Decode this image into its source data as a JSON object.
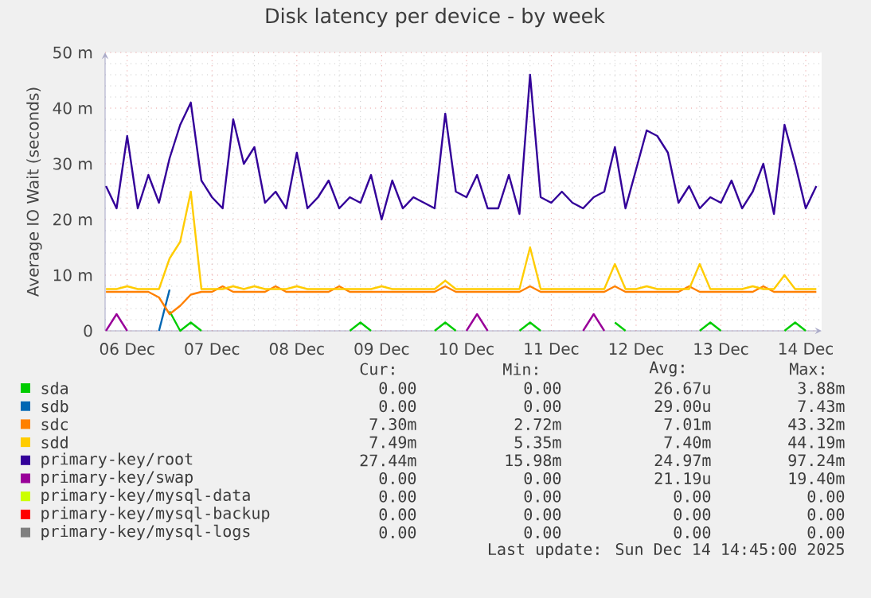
{
  "chart_data": {
    "type": "line",
    "title": "Disk latency per device - by week",
    "ylabel": "Average IO Wait (seconds)",
    "x": [
      "2025-12-05T18:00",
      "2025-12-05T21:00",
      "2025-12-06T00:00",
      "2025-12-06T03:00",
      "2025-12-06T06:00",
      "2025-12-06T09:00",
      "2025-12-06T12:00",
      "2025-12-06T15:00",
      "2025-12-06T18:00",
      "2025-12-06T21:00",
      "2025-12-07T00:00",
      "2025-12-07T03:00",
      "2025-12-07T06:00",
      "2025-12-07T09:00",
      "2025-12-07T12:00",
      "2025-12-07T15:00",
      "2025-12-07T18:00",
      "2025-12-07T21:00",
      "2025-12-08T00:00",
      "2025-12-08T03:00",
      "2025-12-08T06:00",
      "2025-12-08T09:00",
      "2025-12-08T12:00",
      "2025-12-08T15:00",
      "2025-12-08T18:00",
      "2025-12-08T21:00",
      "2025-12-09T00:00",
      "2025-12-09T03:00",
      "2025-12-09T06:00",
      "2025-12-09T09:00",
      "2025-12-09T12:00",
      "2025-12-09T15:00",
      "2025-12-09T18:00",
      "2025-12-09T21:00",
      "2025-12-10T00:00",
      "2025-12-10T03:00",
      "2025-12-10T06:00",
      "2025-12-10T09:00",
      "2025-12-10T12:00",
      "2025-12-10T15:00",
      "2025-12-10T18:00",
      "2025-12-10T21:00",
      "2025-12-11T00:00",
      "2025-12-11T03:00",
      "2025-12-11T06:00",
      "2025-12-11T09:00",
      "2025-12-11T12:00",
      "2025-12-11T15:00",
      "2025-12-11T18:00",
      "2025-12-11T21:00",
      "2025-12-12T00:00",
      "2025-12-12T03:00",
      "2025-12-12T06:00",
      "2025-12-12T09:00",
      "2025-12-12T12:00",
      "2025-12-12T15:00",
      "2025-12-12T18:00",
      "2025-12-12T21:00",
      "2025-12-13T00:00",
      "2025-12-13T03:00",
      "2025-12-13T06:00",
      "2025-12-13T09:00",
      "2025-12-13T12:00",
      "2025-12-13T15:00",
      "2025-12-13T18:00",
      "2025-12-13T21:00",
      "2025-12-14T00:00",
      "2025-12-14T03:00"
    ],
    "xlim": [
      "2025-12-05T17:45",
      "2025-12-14T04:30"
    ],
    "xticks": [
      {
        "value": "2025-12-06",
        "label": "06 Dec"
      },
      {
        "value": "2025-12-07",
        "label": "07 Dec"
      },
      {
        "value": "2025-12-08",
        "label": "08 Dec"
      },
      {
        "value": "2025-12-09",
        "label": "09 Dec"
      },
      {
        "value": "2025-12-10",
        "label": "10 Dec"
      },
      {
        "value": "2025-12-11",
        "label": "11 Dec"
      },
      {
        "value": "2025-12-12",
        "label": "12 Dec"
      },
      {
        "value": "2025-12-13",
        "label": "13 Dec"
      },
      {
        "value": "2025-12-14",
        "label": "14 Dec"
      }
    ],
    "ylim": [
      0,
      50
    ],
    "yticks": [
      0,
      {
        "value": 10,
        "label": "10 m"
      },
      {
        "value": 20,
        "label": "20 m"
      },
      {
        "value": 30,
        "label": "30 m"
      },
      {
        "value": 40,
        "label": "40 m"
      },
      {
        "value": 50,
        "label": "50 m"
      }
    ],
    "grid": true,
    "legend": "bottom",
    "marker": "none",
    "line_style": "solid",
    "series": [
      {
        "name": "sda",
        "color": "#00cc00",
        "values": [
          null,
          null,
          null,
          null,
          null,
          null,
          3.5,
          0,
          1.5,
          0,
          null,
          null,
          null,
          null,
          null,
          null,
          null,
          null,
          null,
          null,
          null,
          null,
          null,
          0,
          1.5,
          0,
          null,
          null,
          null,
          null,
          null,
          0,
          1.5,
          0,
          null,
          null,
          null,
          null,
          null,
          0,
          1.5,
          0,
          null,
          null,
          null,
          null,
          null,
          null,
          1.5,
          0,
          null,
          null,
          null,
          null,
          null,
          null,
          0,
          1.5,
          0,
          null,
          null,
          null,
          null,
          null,
          0,
          1.5,
          0,
          null
        ]
      },
      {
        "name": "sdb",
        "color": "#0066b3",
        "values": [
          null,
          null,
          null,
          null,
          null,
          0,
          7.4,
          null,
          null,
          null,
          null,
          null,
          null,
          null,
          null,
          null,
          null,
          null,
          null,
          null,
          null,
          null,
          null,
          null,
          null,
          null,
          null,
          null,
          null,
          null,
          null,
          null,
          null,
          null,
          null,
          null,
          null,
          null,
          null,
          null,
          null,
          null,
          null,
          null,
          null,
          null,
          null,
          null,
          null,
          null,
          null,
          null,
          null,
          null,
          null,
          null,
          null,
          null,
          null,
          null,
          null,
          null,
          null,
          null,
          null,
          null,
          null,
          null
        ]
      },
      {
        "name": "sdc",
        "color": "#ff8000",
        "values": [
          7,
          7,
          7,
          7,
          7,
          6,
          3,
          4.5,
          6.5,
          7,
          7,
          8,
          7,
          7,
          7,
          7,
          8,
          7,
          7,
          7,
          7,
          7,
          8,
          7,
          7,
          7,
          7,
          7,
          7,
          7,
          7,
          7,
          8,
          7,
          7,
          7,
          7,
          7,
          7,
          7,
          8,
          7,
          7,
          7,
          7,
          7,
          7,
          7,
          8,
          7,
          7,
          7,
          7,
          7,
          7,
          8,
          7,
          7,
          7,
          7,
          7,
          7,
          8,
          7,
          7,
          7,
          7,
          7
        ]
      },
      {
        "name": "sdd",
        "color": "#ffcc00",
        "values": [
          7.5,
          7.5,
          8,
          7.5,
          7.5,
          7.5,
          13,
          16,
          25,
          7.5,
          7.5,
          7.5,
          8,
          7.5,
          8,
          7.5,
          7.5,
          7.5,
          8,
          7.5,
          7.5,
          7.5,
          7.5,
          7.5,
          7.5,
          7.5,
          8,
          7.5,
          7.5,
          7.5,
          7.5,
          7.5,
          9,
          7.5,
          7.5,
          7.5,
          7.5,
          7.5,
          7.5,
          7.5,
          15,
          7.5,
          7.5,
          7.5,
          7.5,
          7.5,
          7.5,
          7.5,
          12,
          7.5,
          7.5,
          8,
          7.5,
          7.5,
          7.5,
          7.5,
          12,
          7.5,
          7.5,
          7.5,
          7.5,
          8,
          7.5,
          7.5,
          10,
          7.5,
          7.5,
          7.5
        ]
      },
      {
        "name": "primary-key/root",
        "color": "#330099",
        "values": [
          26,
          22,
          35,
          22,
          28,
          23,
          31,
          37,
          41,
          27,
          24,
          22,
          38,
          30,
          33,
          23,
          25,
          22,
          32,
          22,
          24,
          27,
          22,
          24,
          23,
          28,
          20,
          27,
          22,
          24,
          23,
          22,
          39,
          25,
          24,
          28,
          22,
          22,
          28,
          21,
          46,
          24,
          23,
          25,
          23,
          22,
          24,
          25,
          33,
          22,
          29,
          36,
          35,
          32,
          23,
          26,
          22,
          24,
          23,
          27,
          22,
          25,
          30,
          21,
          37,
          30,
          22,
          26
        ]
      },
      {
        "name": "primary-key/swap",
        "color": "#990099",
        "values": [
          0,
          3,
          0,
          null,
          null,
          null,
          null,
          null,
          null,
          null,
          null,
          null,
          null,
          null,
          null,
          null,
          null,
          null,
          null,
          null,
          null,
          null,
          null,
          null,
          null,
          null,
          null,
          null,
          null,
          null,
          null,
          null,
          null,
          null,
          0,
          3,
          0,
          null,
          null,
          null,
          null,
          null,
          null,
          null,
          null,
          0,
          3,
          0,
          null,
          null,
          null,
          null,
          null,
          null,
          null,
          null,
          null,
          null,
          null,
          null,
          null,
          null,
          null,
          null,
          null,
          null,
          null,
          null
        ]
      },
      {
        "name": "primary-key/mysql-data",
        "color": "#ccff00",
        "values": [
          null,
          null,
          null,
          null,
          null,
          null,
          null,
          null,
          null,
          null,
          null,
          null,
          null,
          null,
          null,
          null,
          null,
          null,
          null,
          null,
          null,
          null,
          null,
          null,
          null,
          null,
          null,
          null,
          null,
          null,
          null,
          null,
          null,
          null,
          null,
          null,
          null,
          null,
          null,
          null,
          null,
          null,
          null,
          null,
          null,
          null,
          null,
          null,
          null,
          null,
          null,
          null,
          null,
          null,
          null,
          null,
          null,
          null,
          null,
          null,
          null,
          null,
          null,
          null,
          null,
          null,
          null,
          null
        ]
      },
      {
        "name": "primary-key/mysql-backup",
        "color": "#ff0000",
        "values": [
          null,
          null,
          null,
          null,
          null,
          null,
          null,
          null,
          null,
          null,
          null,
          null,
          null,
          null,
          null,
          null,
          null,
          null,
          null,
          null,
          null,
          null,
          null,
          null,
          null,
          null,
          null,
          null,
          null,
          null,
          null,
          null,
          null,
          null,
          null,
          null,
          null,
          null,
          null,
          null,
          null,
          null,
          null,
          null,
          null,
          null,
          null,
          null,
          null,
          null,
          null,
          null,
          null,
          null,
          null,
          null,
          null,
          null,
          null,
          null,
          null,
          null,
          null,
          null,
          null,
          null,
          null,
          null
        ]
      },
      {
        "name": "primary-key/mysql-logs",
        "color": "#808080",
        "values": [
          null,
          null,
          null,
          null,
          null,
          null,
          null,
          null,
          null,
          null,
          null,
          null,
          null,
          null,
          null,
          null,
          null,
          null,
          null,
          null,
          null,
          null,
          null,
          null,
          null,
          null,
          null,
          null,
          null,
          null,
          null,
          null,
          null,
          null,
          null,
          null,
          null,
          null,
          null,
          null,
          null,
          null,
          null,
          null,
          null,
          null,
          null,
          null,
          null,
          null,
          null,
          null,
          null,
          null,
          null,
          null,
          null,
          null,
          null,
          null,
          null,
          null,
          null,
          null,
          null,
          null,
          null,
          null
        ]
      }
    ],
    "annotations": [
      "Cur:",
      "Min:",
      "Avg:",
      "Max:",
      "0.00",
      "0.00",
      "26.67u",
      "3.88m",
      "0.00",
      "0.00",
      "29.00u",
      "7.43m",
      "7.30m",
      "2.72m",
      "7.01m",
      "43.32m",
      "7.49m",
      "5.35m",
      "7.40m",
      "44.19m",
      "27.44m",
      "15.98m",
      "24.97m",
      "97.24m",
      "0.00",
      "0.00",
      "21.19u",
      "19.40m",
      "0.00",
      "0.00",
      "0.00",
      "0.00",
      "0.00",
      "0.00",
      "0.00",
      "0.00",
      "0.00",
      "0.00",
      "0.00",
      "0.00",
      "Last update:  Sun Dec 14 14:45:00 2025"
    ]
  }
}
